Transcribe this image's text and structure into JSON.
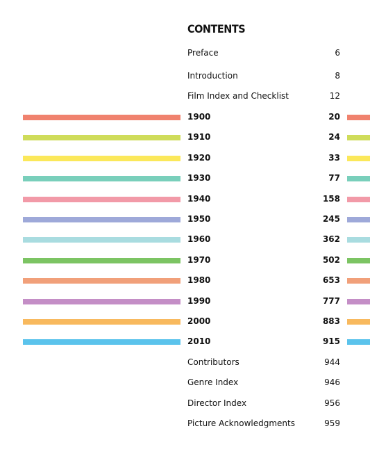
{
  "title": "CONTENTS",
  "entries": [
    {
      "label": "Preface",
      "page": 6
    },
    {
      "label": "Introduction",
      "page": 8
    },
    {
      "label": "Film Index and Checklist",
      "page": 12
    },
    {
      "label": "1900",
      "page": 20,
      "color": "#f0826e"
    },
    {
      "label": "1910",
      "page": 24,
      "color": "#cfdc5a"
    },
    {
      "label": "1920",
      "page": 33,
      "color": "#fbe85a"
    },
    {
      "label": "1930",
      "page": 77,
      "color": "#79cfbb"
    },
    {
      "label": "1940",
      "page": 158,
      "color": "#f29aa8"
    },
    {
      "label": "1950",
      "page": 245,
      "color": "#9ea9d9"
    },
    {
      "label": "1960",
      "page": 362,
      "color": "#a9dce0"
    },
    {
      "label": "1970",
      "page": 502,
      "color": "#7cc463"
    },
    {
      "label": "1980",
      "page": 653,
      "color": "#f1a07a"
    },
    {
      "label": "1990",
      "page": 777,
      "color": "#c48ec6"
    },
    {
      "label": "2000",
      "page": 883,
      "color": "#f8b95e"
    },
    {
      "label": "2010",
      "page": 915,
      "color": "#5bc3ec"
    },
    {
      "label": "Contributors",
      "page": 944
    },
    {
      "label": "Genre Index",
      "page": 946
    },
    {
      "label": "Director Index",
      "page": 956
    },
    {
      "label": "Picture Acknowledgments",
      "page": 959
    }
  ]
}
